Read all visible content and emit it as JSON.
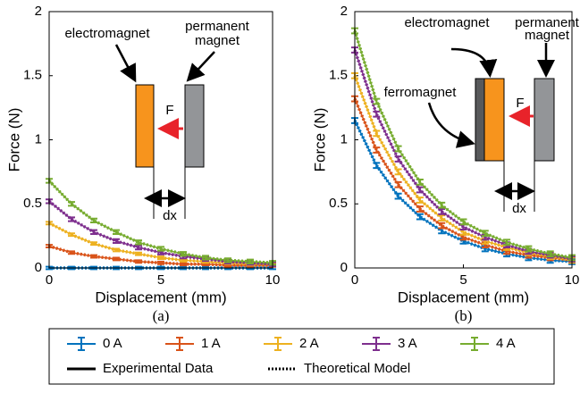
{
  "chart_data": [
    {
      "type": "line",
      "panel": "(a)",
      "xlabel": "Displacement (mm)",
      "ylabel": "Force (N)",
      "xlim": [
        0,
        10
      ],
      "ylim": [
        0,
        2
      ],
      "xticks": [
        0,
        5,
        10
      ],
      "yticks": [
        0,
        0.5,
        1,
        1.5,
        2
      ],
      "x": [
        0,
        1,
        2,
        3,
        4,
        5,
        6,
        7,
        8,
        9,
        10
      ],
      "annotations": [
        "electromagnet",
        "permanent",
        "magnet",
        "F",
        "dx"
      ],
      "series": [
        {
          "name": "0 A",
          "color": "#0072bd",
          "values": [
            0,
            0,
            0,
            0,
            0,
            0,
            0,
            0,
            0,
            0,
            0
          ],
          "model": [
            0,
            0,
            0,
            0,
            0,
            0,
            0,
            0,
            0,
            0,
            0
          ],
          "errors": [
            0.01,
            0.01,
            0.01,
            0.01,
            0.01,
            0.01,
            0.01,
            0.01,
            0.01,
            0.01,
            0.01
          ]
        },
        {
          "name": "1 A",
          "color": "#d95319",
          "values": [
            0.17,
            0.12,
            0.09,
            0.07,
            0.05,
            0.04,
            0.03,
            0.03,
            0.02,
            0.02,
            0.02
          ],
          "model": [
            0.17,
            0.12,
            0.09,
            0.07,
            0.05,
            0.04,
            0.03,
            0.03,
            0.02,
            0.02,
            0.02
          ],
          "errors": [
            0.01,
            0.01,
            0.01,
            0.01,
            0.01,
            0.01,
            0.01,
            0.01,
            0.01,
            0.01,
            0.01
          ]
        },
        {
          "name": "2 A",
          "color": "#edb120",
          "values": [
            0.35,
            0.26,
            0.19,
            0.14,
            0.11,
            0.08,
            0.06,
            0.05,
            0.04,
            0.03,
            0.03
          ],
          "model": [
            0.35,
            0.26,
            0.19,
            0.14,
            0.11,
            0.08,
            0.06,
            0.05,
            0.04,
            0.03,
            0.03
          ],
          "errors": [
            0.01,
            0.01,
            0.01,
            0.01,
            0.01,
            0.01,
            0.01,
            0.01,
            0.01,
            0.01,
            0.01
          ]
        },
        {
          "name": "3 A",
          "color": "#7e2f8e",
          "values": [
            0.52,
            0.38,
            0.28,
            0.21,
            0.16,
            0.12,
            0.09,
            0.07,
            0.05,
            0.04,
            0.03
          ],
          "model": [
            0.52,
            0.38,
            0.28,
            0.21,
            0.16,
            0.12,
            0.09,
            0.07,
            0.05,
            0.04,
            0.03
          ],
          "errors": [
            0.015,
            0.015,
            0.015,
            0.015,
            0.015,
            0.015,
            0.015,
            0.015,
            0.015,
            0.015,
            0.015
          ]
        },
        {
          "name": "4 A",
          "color": "#77ac30",
          "values": [
            0.68,
            0.5,
            0.37,
            0.28,
            0.2,
            0.15,
            0.11,
            0.08,
            0.06,
            0.05,
            0.04
          ],
          "model": [
            0.68,
            0.5,
            0.37,
            0.28,
            0.2,
            0.15,
            0.11,
            0.08,
            0.06,
            0.05,
            0.04
          ],
          "errors": [
            0.015,
            0.015,
            0.015,
            0.015,
            0.015,
            0.015,
            0.015,
            0.015,
            0.015,
            0.015,
            0.015
          ]
        }
      ]
    },
    {
      "type": "line",
      "panel": "(b)",
      "xlabel": "Displacement (mm)",
      "ylabel": "Force (N)",
      "xlim": [
        0,
        10
      ],
      "ylim": [
        0,
        2
      ],
      "xticks": [
        0,
        5,
        10
      ],
      "yticks": [
        0,
        0.5,
        1,
        1.5,
        2
      ],
      "x": [
        0,
        1,
        2,
        3,
        4,
        5,
        6,
        7,
        8,
        9,
        10
      ],
      "annotations": [
        "electromagnet",
        "permanent",
        "magnet",
        "ferromagnet",
        "F",
        "dx"
      ],
      "series": [
        {
          "name": "0 A",
          "color": "#0072bd",
          "values": [
            1.15,
            0.8,
            0.56,
            0.4,
            0.29,
            0.21,
            0.15,
            0.11,
            0.08,
            0.06,
            0.05
          ],
          "model": [
            1.15,
            0.8,
            0.56,
            0.4,
            0.29,
            0.21,
            0.15,
            0.11,
            0.08,
            0.06,
            0.05
          ],
          "errors": [
            0.02,
            0.02,
            0.02,
            0.02,
            0.02,
            0.02,
            0.02,
            0.02,
            0.02,
            0.02,
            0.02
          ]
        },
        {
          "name": "1 A",
          "color": "#d95319",
          "values": [
            1.32,
            0.92,
            0.65,
            0.46,
            0.33,
            0.24,
            0.18,
            0.13,
            0.1,
            0.08,
            0.06
          ],
          "model": [
            1.32,
            0.92,
            0.65,
            0.46,
            0.33,
            0.24,
            0.18,
            0.13,
            0.1,
            0.08,
            0.06
          ],
          "errors": [
            0.02,
            0.02,
            0.02,
            0.02,
            0.02,
            0.02,
            0.02,
            0.02,
            0.02,
            0.02,
            0.02
          ]
        },
        {
          "name": "2 A",
          "color": "#edb120",
          "values": [
            1.5,
            1.05,
            0.75,
            0.53,
            0.39,
            0.28,
            0.21,
            0.16,
            0.12,
            0.09,
            0.06
          ],
          "model": [
            1.5,
            1.05,
            0.75,
            0.53,
            0.39,
            0.28,
            0.21,
            0.16,
            0.12,
            0.09,
            0.06
          ],
          "errors": [
            0.02,
            0.02,
            0.02,
            0.02,
            0.02,
            0.02,
            0.02,
            0.02,
            0.02,
            0.02,
            0.02
          ]
        },
        {
          "name": "3 A",
          "color": "#7e2f8e",
          "values": [
            1.7,
            1.2,
            0.85,
            0.61,
            0.44,
            0.32,
            0.24,
            0.18,
            0.13,
            0.1,
            0.07
          ],
          "model": [
            1.7,
            1.2,
            0.85,
            0.61,
            0.44,
            0.32,
            0.24,
            0.18,
            0.13,
            0.1,
            0.07
          ],
          "errors": [
            0.02,
            0.02,
            0.02,
            0.02,
            0.02,
            0.02,
            0.02,
            0.02,
            0.02,
            0.02,
            0.02
          ]
        },
        {
          "name": "4 A",
          "color": "#77ac30",
          "values": [
            1.85,
            1.3,
            0.93,
            0.67,
            0.49,
            0.36,
            0.27,
            0.2,
            0.15,
            0.11,
            0.08
          ],
          "model": [
            1.85,
            1.3,
            0.93,
            0.67,
            0.49,
            0.36,
            0.27,
            0.2,
            0.15,
            0.11,
            0.08
          ],
          "errors": [
            0.02,
            0.02,
            0.02,
            0.02,
            0.02,
            0.02,
            0.02,
            0.02,
            0.02,
            0.02,
            0.02
          ]
        }
      ]
    }
  ],
  "legend": {
    "line_styles": [
      "Experimental Data",
      "Theoretical Model"
    ]
  }
}
